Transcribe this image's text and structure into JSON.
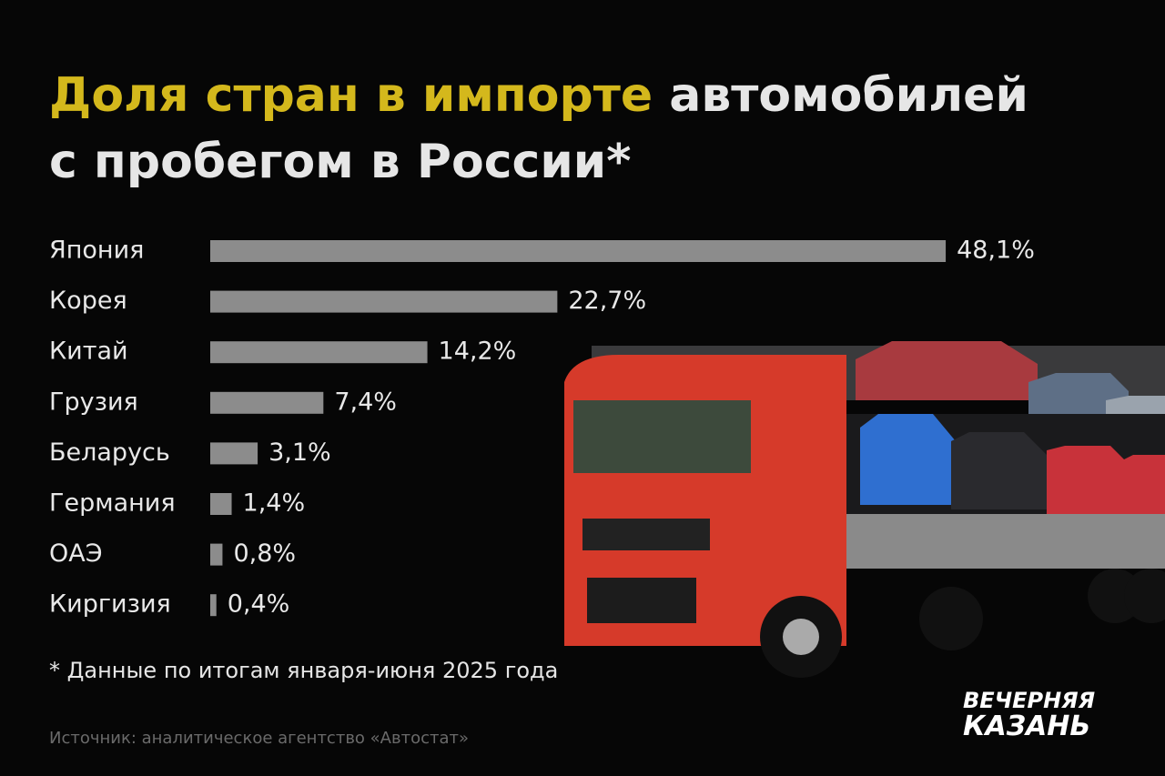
{
  "chart_data": {
    "type": "bar",
    "orientation": "horizontal",
    "title": [
      "Доля стран в импорте",
      "автомобилей",
      "с пробегом в России*"
    ],
    "categories": [
      "Япония",
      "Корея",
      "Китай",
      "Грузия",
      "Беларусь",
      "Германия",
      "ОАЭ",
      "Киргизия"
    ],
    "values": [
      48.1,
      22.7,
      14.2,
      7.4,
      3.1,
      1.4,
      0.8,
      0.4
    ],
    "value_labels": [
      "48,1%",
      "22,7%",
      "14,2%",
      "7,4%",
      "3,1%",
      "1,4%",
      "0,8%",
      "0,4%"
    ],
    "color": "#8c8c8c",
    "title_highlight_color": "#d4b81c",
    "footnote": "* Данные по итогам января-июня 2025 года",
    "source": "Источник: аналитическое агентство «Автостат»",
    "logo": [
      "ВЕЧЕРНЯЯ",
      "КАЗАНЬ"
    ]
  }
}
